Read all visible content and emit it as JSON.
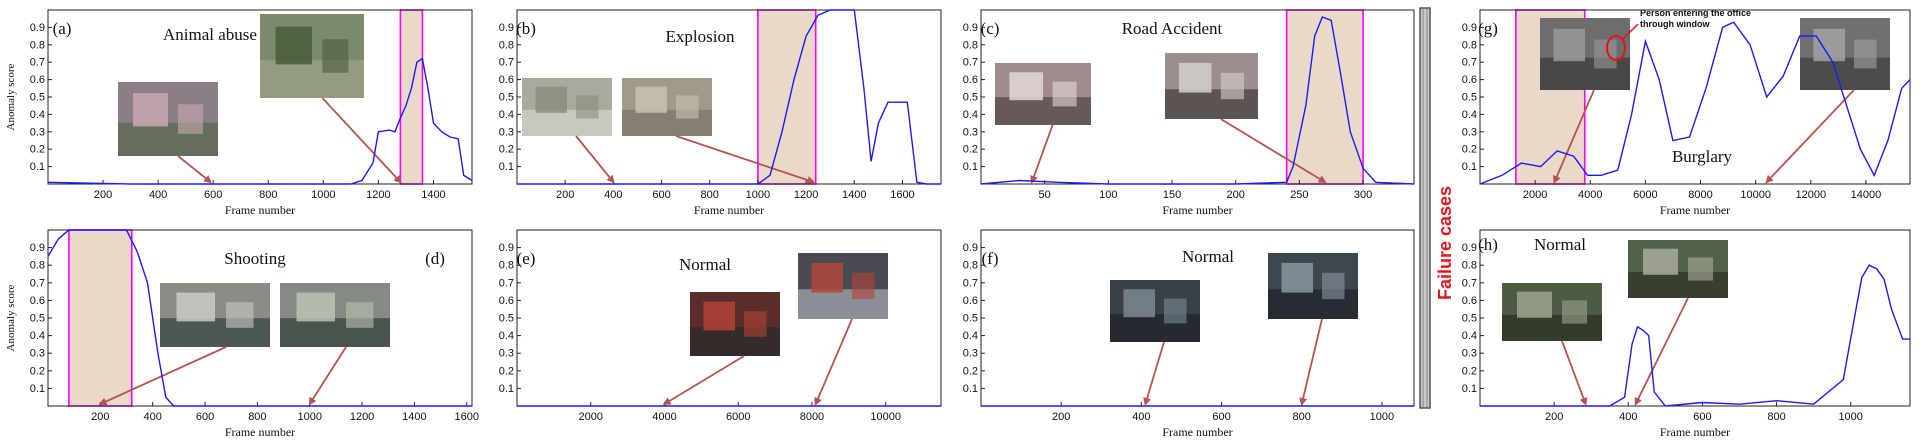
{
  "separator": {
    "label": "Failure cases",
    "label_color": "#e8131a"
  },
  "colors": {
    "curve": "#1a1aff",
    "highlight_fill": "#ead8c8",
    "highlight_edge": "#ff00ff",
    "arrow": "#b5534f"
  },
  "panels": [
    {
      "id": "a",
      "tag": "(a)",
      "caption": "Animal abuse",
      "ylabel": "Anomaly score",
      "xlabel": "Frame number",
      "xlim": [
        0,
        1540
      ],
      "xticks": [
        200,
        400,
        600,
        800,
        1000,
        1200,
        1400
      ],
      "highlight": [
        1280,
        1360
      ],
      "thumbs": [
        {
          "arrow_x": 590,
          "colors": [
            "#8a7f86",
            "#c9a7b2",
            "#5d6b55"
          ]
        },
        {
          "arrow_x": 1280,
          "colors": [
            "#7a8a6a",
            "#4a5a3a",
            "#9aa08a"
          ]
        }
      ],
      "x": [
        0,
        300,
        600,
        900,
        1100,
        1140,
        1180,
        1200,
        1240,
        1260,
        1280,
        1300,
        1320,
        1340,
        1360,
        1380,
        1400,
        1430,
        1460,
        1490,
        1510,
        1540
      ],
      "y": [
        0.01,
        0.0,
        0.0,
        0.0,
        0.0,
        0.02,
        0.12,
        0.3,
        0.31,
        0.3,
        0.38,
        0.45,
        0.55,
        0.7,
        0.72,
        0.55,
        0.35,
        0.3,
        0.27,
        0.26,
        0.05,
        0.02
      ]
    },
    {
      "id": "b",
      "tag": "(b)",
      "caption": "Explosion",
      "ylabel": "",
      "xlabel": "Frame number",
      "xlim": [
        0,
        1760
      ],
      "xticks": [
        200,
        400,
        600,
        800,
        1000,
        1200,
        1400,
        1600
      ],
      "highlight": [
        1000,
        1240
      ],
      "thumbs": [
        {
          "arrow_x": 400,
          "colors": [
            "#a9a99f",
            "#8a8f7d",
            "#d0d0c8"
          ]
        },
        {
          "arrow_x": 1230,
          "colors": [
            "#a09a8a",
            "#c8c2b2",
            "#7d786a"
          ]
        }
      ],
      "x": [
        0,
        500,
        900,
        1000,
        1050,
        1100,
        1150,
        1200,
        1250,
        1300,
        1360,
        1400,
        1440,
        1470,
        1500,
        1540,
        1580,
        1620,
        1660,
        1700,
        1760
      ],
      "y": [
        0.0,
        0.0,
        0.0,
        0.0,
        0.05,
        0.3,
        0.6,
        0.85,
        0.97,
        1.0,
        1.0,
        1.0,
        0.55,
        0.13,
        0.35,
        0.47,
        0.47,
        0.47,
        0.01,
        0.0,
        0.0
      ]
    },
    {
      "id": "c",
      "tag": "(c)",
      "caption": "Road Accident",
      "ylabel": "",
      "xlabel": "Frame number",
      "xlim": [
        0,
        340
      ],
      "xticks": [
        50,
        100,
        150,
        200,
        250,
        300
      ],
      "highlight": [
        240,
        300
      ],
      "thumbs": [
        {
          "arrow_x": 40,
          "colors": [
            "#a08c8e",
            "#e3d8d6",
            "#5a4b4c"
          ]
        },
        {
          "arrow_x": 270,
          "colors": [
            "#9a8f8c",
            "#d5d0cc",
            "#4c4543"
          ]
        }
      ],
      "x": [
        0,
        30,
        60,
        100,
        150,
        200,
        240,
        245,
        255,
        262,
        268,
        275,
        282,
        290,
        300,
        310,
        340
      ],
      "y": [
        0.0,
        0.02,
        0.01,
        0.0,
        0.0,
        0.0,
        0.01,
        0.1,
        0.45,
        0.85,
        0.96,
        0.94,
        0.65,
        0.3,
        0.09,
        0.01,
        0.0
      ]
    },
    {
      "id": "g",
      "tag": "(g)",
      "caption": "Burglary",
      "ylabel": "",
      "xlabel": "Frame number",
      "xlim": [
        0,
        15600
      ],
      "xticks": [
        2000,
        4000,
        6000,
        8000,
        10000,
        12000,
        14000
      ],
      "highlight": [
        1300,
        3800
      ],
      "annotation": [
        "Person entering the office",
        "through window"
      ],
      "thumbs": [
        {
          "arrow_x": 2700,
          "colors": [
            "#6d6d6d",
            "#9a9a9a",
            "#3f3f3f"
          ]
        },
        {
          "arrow_x": 10400,
          "colors": [
            "#707070",
            "#a2a2a2",
            "#444444"
          ]
        }
      ],
      "x": [
        0,
        800,
        1500,
        2200,
        2800,
        3400,
        3900,
        4400,
        5000,
        5500,
        6000,
        6500,
        7000,
        7600,
        8200,
        8800,
        9200,
        9800,
        10400,
        11000,
        11600,
        12200,
        12800,
        13300,
        13800,
        14300,
        14800,
        15300,
        15600
      ],
      "y": [
        0.0,
        0.05,
        0.12,
        0.1,
        0.19,
        0.16,
        0.05,
        0.05,
        0.08,
        0.4,
        0.82,
        0.6,
        0.25,
        0.27,
        0.55,
        0.9,
        0.93,
        0.8,
        0.5,
        0.62,
        0.85,
        0.85,
        0.7,
        0.45,
        0.2,
        0.05,
        0.25,
        0.55,
        0.6
      ]
    },
    {
      "id": "d",
      "tag": "(d)",
      "caption": "Shooting",
      "tag_right": true,
      "ylabel": "Anomaly score",
      "xlabel": "Frame number",
      "xlim": [
        0,
        1620
      ],
      "xticks": [
        200,
        400,
        600,
        800,
        1000,
        1200,
        1400,
        1600
      ],
      "highlight": [
        80,
        320
      ],
      "thumbs": [
        {
          "arrow_x": 200,
          "colors": [
            "#8a8d86",
            "#c8ccc4",
            "#3f4a45"
          ]
        },
        {
          "arrow_x": 1000,
          "colors": [
            "#858a82",
            "#bcc2b8",
            "#3c4540"
          ]
        }
      ],
      "x": [
        0,
        40,
        80,
        120,
        200,
        300,
        340,
        380,
        420,
        450,
        480,
        600,
        900,
        1200,
        1620
      ],
      "y": [
        0.85,
        0.95,
        1.0,
        1.0,
        1.0,
        1.0,
        0.88,
        0.7,
        0.3,
        0.05,
        0.0,
        0.0,
        0.0,
        0.0,
        0.0
      ]
    },
    {
      "id": "e",
      "tag": "(e)",
      "caption": "Normal",
      "ylabel": "",
      "xlabel": "",
      "xlim": [
        0,
        11500
      ],
      "xticks": [
        2000,
        4000,
        6000,
        8000,
        10000
      ],
      "highlight": null,
      "thumbs": [
        {
          "arrow_x": 4000,
          "colors": [
            "#5a2d2a",
            "#b04236",
            "#2a2a2a"
          ]
        },
        {
          "arrow_x": 8100,
          "colors": [
            "#4a4a52",
            "#b2463a",
            "#9aa0a8"
          ]
        }
      ],
      "x": [
        0,
        2000,
        4000,
        6000,
        8000,
        10000,
        11500
      ],
      "y": [
        0.0,
        0.0,
        0.0,
        0.0,
        0.0,
        0.0,
        0.0
      ]
    },
    {
      "id": "f",
      "tag": "(f)",
      "caption": "Normal",
      "ylabel": "",
      "xlabel": "Frame number",
      "xlim": [
        0,
        1080
      ],
      "xticks": [
        200,
        400,
        600,
        800,
        1000
      ],
      "highlight": null,
      "thumbs": [
        {
          "arrow_x": 410,
          "colors": [
            "#3a4048",
            "#7d8a92",
            "#1f242a"
          ]
        },
        {
          "arrow_x": 800,
          "colors": [
            "#3e464e",
            "#8a969e",
            "#20262c"
          ]
        }
      ],
      "x": [
        0,
        200,
        400,
        600,
        800,
        1000,
        1080
      ],
      "y": [
        0.0,
        0.0,
        0.0,
        0.0,
        0.0,
        0.0,
        0.0
      ]
    },
    {
      "id": "h",
      "tag": "(h)",
      "caption": "Normal",
      "ylabel": "",
      "xlabel": "Frame number",
      "xlim": [
        0,
        1160
      ],
      "xticks": [
        200,
        400,
        600,
        800,
        1000
      ],
      "highlight": null,
      "thumbs": [
        {
          "arrow_x": 285,
          "colors": [
            "#4e5a42",
            "#9da58f",
            "#2d3526"
          ]
        },
        {
          "arrow_x": 420,
          "colors": [
            "#55604a",
            "#a8ad9a",
            "#2f3728"
          ]
        }
      ],
      "x": [
        0,
        200,
        350,
        390,
        410,
        425,
        440,
        455,
        470,
        500,
        600,
        700,
        800,
        900,
        980,
        1010,
        1030,
        1050,
        1070,
        1090,
        1110,
        1140,
        1160
      ],
      "y": [
        0.0,
        0.0,
        0.0,
        0.05,
        0.35,
        0.45,
        0.43,
        0.4,
        0.08,
        0.0,
        0.02,
        0.01,
        0.03,
        0.01,
        0.15,
        0.5,
        0.73,
        0.8,
        0.78,
        0.72,
        0.55,
        0.38,
        0.38
      ]
    }
  ],
  "chart_data": [
    {
      "type": "line",
      "title": "Animal abuse",
      "xlabel": "Frame number",
      "ylabel": "Anomaly score",
      "xlim": [
        0,
        1540
      ],
      "ylim": [
        0,
        1
      ],
      "x": [
        0,
        300,
        600,
        900,
        1100,
        1140,
        1180,
        1200,
        1240,
        1260,
        1280,
        1300,
        1320,
        1340,
        1360,
        1380,
        1400,
        1430,
        1460,
        1490,
        1510,
        1540
      ],
      "y": [
        0.01,
        0.0,
        0.0,
        0.0,
        0.0,
        0.02,
        0.12,
        0.3,
        0.31,
        0.3,
        0.38,
        0.45,
        0.55,
        0.7,
        0.72,
        0.55,
        0.35,
        0.3,
        0.27,
        0.26,
        0.05,
        0.02
      ]
    },
    {
      "type": "line",
      "title": "Explosion",
      "xlabel": "Frame number",
      "xlim": [
        0,
        1760
      ],
      "ylim": [
        0,
        1
      ],
      "x": [
        0,
        500,
        900,
        1000,
        1050,
        1100,
        1150,
        1200,
        1250,
        1300,
        1360,
        1400,
        1440,
        1470,
        1500,
        1540,
        1580,
        1620,
        1660,
        1700,
        1760
      ],
      "y": [
        0.0,
        0.0,
        0.0,
        0.0,
        0.05,
        0.3,
        0.6,
        0.85,
        0.97,
        1.0,
        1.0,
        1.0,
        0.55,
        0.13,
        0.35,
        0.47,
        0.47,
        0.47,
        0.01,
        0.0,
        0.0
      ]
    },
    {
      "type": "line",
      "title": "Road Accident",
      "xlabel": "Frame number",
      "xlim": [
        0,
        340
      ],
      "ylim": [
        0,
        1
      ],
      "x": [
        0,
        30,
        60,
        100,
        150,
        200,
        240,
        245,
        255,
        262,
        268,
        275,
        282,
        290,
        300,
        310,
        340
      ],
      "y": [
        0.0,
        0.02,
        0.01,
        0.0,
        0.0,
        0.0,
        0.01,
        0.1,
        0.45,
        0.85,
        0.96,
        0.94,
        0.65,
        0.3,
        0.09,
        0.01,
        0.0
      ]
    },
    {
      "type": "line",
      "title": "Burglary",
      "xlabel": "Frame number",
      "xlim": [
        0,
        15600
      ],
      "ylim": [
        0,
        1
      ],
      "x": [
        0,
        800,
        1500,
        2200,
        2800,
        3400,
        3900,
        4400,
        5000,
        5500,
        6000,
        6500,
        7000,
        7600,
        8200,
        8800,
        9200,
        9800,
        10400,
        11000,
        11600,
        12200,
        12800,
        13300,
        13800,
        14300,
        14800,
        15300,
        15600
      ],
      "y": [
        0.0,
        0.05,
        0.12,
        0.1,
        0.19,
        0.16,
        0.05,
        0.05,
        0.08,
        0.4,
        0.82,
        0.6,
        0.25,
        0.27,
        0.55,
        0.9,
        0.93,
        0.8,
        0.5,
        0.62,
        0.85,
        0.85,
        0.7,
        0.45,
        0.2,
        0.05,
        0.25,
        0.55,
        0.6
      ]
    },
    {
      "type": "line",
      "title": "Shooting",
      "xlabel": "Frame number",
      "ylabel": "Anomaly score",
      "xlim": [
        0,
        1620
      ],
      "ylim": [
        0,
        1
      ],
      "x": [
        0,
        40,
        80,
        120,
        200,
        300,
        340,
        380,
        420,
        450,
        480,
        600,
        900,
        1200,
        1620
      ],
      "y": [
        0.85,
        0.95,
        1.0,
        1.0,
        1.0,
        1.0,
        0.88,
        0.7,
        0.3,
        0.05,
        0.0,
        0.0,
        0.0,
        0.0,
        0.0
      ]
    },
    {
      "type": "line",
      "title": "Normal",
      "xlim": [
        0,
        11500
      ],
      "ylim": [
        0,
        1
      ],
      "x": [
        0,
        2000,
        4000,
        6000,
        8000,
        10000,
        11500
      ],
      "y": [
        0.0,
        0.0,
        0.0,
        0.0,
        0.0,
        0.0,
        0.0
      ]
    },
    {
      "type": "line",
      "title": "Normal",
      "xlabel": "Frame number",
      "xlim": [
        0,
        1080
      ],
      "ylim": [
        0,
        1
      ],
      "x": [
        0,
        200,
        400,
        600,
        800,
        1000,
        1080
      ],
      "y": [
        0.0,
        0.0,
        0.0,
        0.0,
        0.0,
        0.0,
        0.0
      ]
    },
    {
      "type": "line",
      "title": "Normal",
      "xlabel": "Frame number",
      "xlim": [
        0,
        1160
      ],
      "ylim": [
        0,
        1
      ],
      "x": [
        0,
        200,
        350,
        390,
        410,
        425,
        440,
        455,
        470,
        500,
        600,
        700,
        800,
        900,
        980,
        1010,
        1030,
        1050,
        1070,
        1090,
        1110,
        1140,
        1160
      ],
      "y": [
        0.0,
        0.0,
        0.0,
        0.05,
        0.35,
        0.45,
        0.43,
        0.4,
        0.08,
        0.0,
        0.02,
        0.01,
        0.03,
        0.01,
        0.15,
        0.5,
        0.73,
        0.8,
        0.78,
        0.72,
        0.55,
        0.38,
        0.38
      ]
    }
  ]
}
